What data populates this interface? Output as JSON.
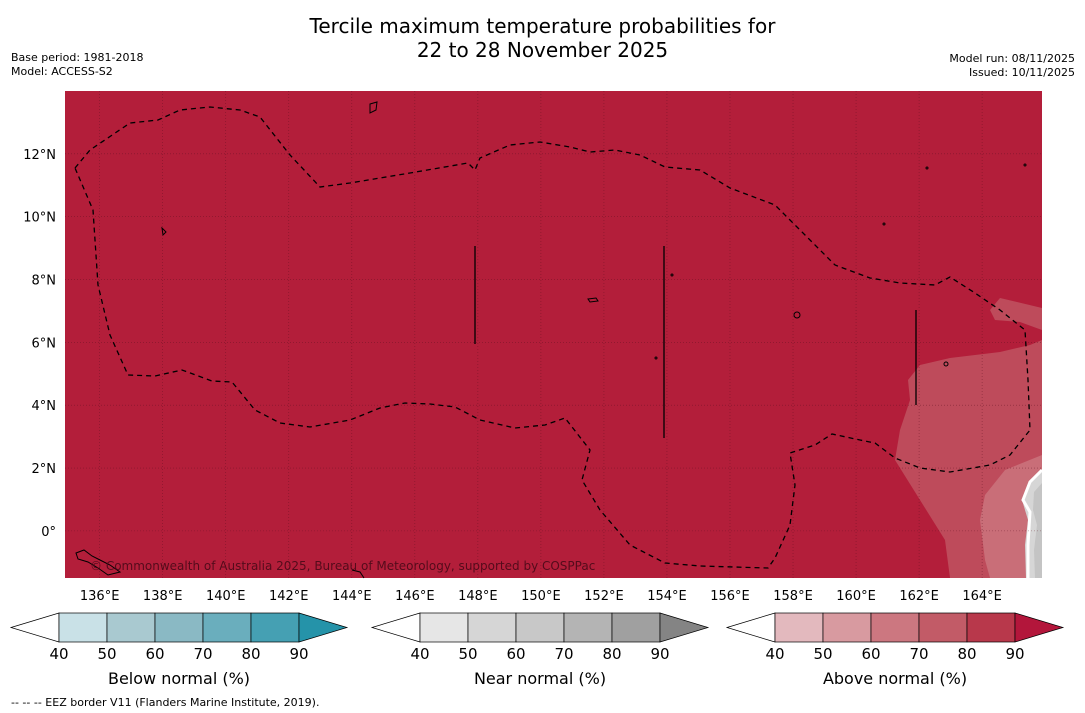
{
  "title": {
    "line1": "Tercile maximum temperature probabilities for",
    "line2": "22 to 28 November 2025"
  },
  "meta": {
    "base_period": "Base period: 1981-2018",
    "model": "Model: ACCESS-S2",
    "model_run": "Model run: 08/11/2025",
    "issued": "Issued: 10/11/2025"
  },
  "map": {
    "background_color": "#b31e3a",
    "copyright": "© Commonwealth of Australia 2025, Bureau of Meteorology, supported by COSPPac",
    "lon_labels": [
      "136°E",
      "138°E",
      "140°E",
      "142°E",
      "144°E",
      "146°E",
      "148°E",
      "150°E",
      "152°E",
      "154°E",
      "156°E",
      "158°E",
      "160°E",
      "162°E",
      "164°E"
    ],
    "lat_labels": [
      "12°N",
      "10°N",
      "8°N",
      "6°N",
      "4°N",
      "2°N",
      "0°"
    ],
    "lon_range": [
      134.9,
      165.9
    ],
    "lat_range": [
      -1.5,
      14.0
    ]
  },
  "colorbars": [
    {
      "title": "Below normal (%)",
      "ticks": [
        "40",
        "50",
        "60",
        "70",
        "80",
        "90"
      ],
      "colors": [
        "#ffffff",
        "#c9e1e7",
        "#a9c9d0",
        "#8ab9c4",
        "#6aaebd",
        "#45a0b3",
        "#2593a9"
      ]
    },
    {
      "title": "Near normal (%)",
      "ticks": [
        "40",
        "50",
        "60",
        "70",
        "80",
        "90"
      ],
      "colors": [
        "#ffffff",
        "#e6e6e6",
        "#d6d6d6",
        "#c8c8c8",
        "#b4b4b4",
        "#a0a0a0",
        "#848484"
      ]
    },
    {
      "title": "Above normal (%)",
      "ticks": [
        "40",
        "50",
        "60",
        "70",
        "80",
        "90"
      ],
      "colors": [
        "#ffffff",
        "#e3b9be",
        "#d89aa0",
        "#cc7780",
        "#c25b67",
        "#b8384b",
        "#b3163b"
      ]
    }
  ],
  "footnote": "--  --  -- EEZ border V11 (Flanders Marine Institute, 2019)."
}
